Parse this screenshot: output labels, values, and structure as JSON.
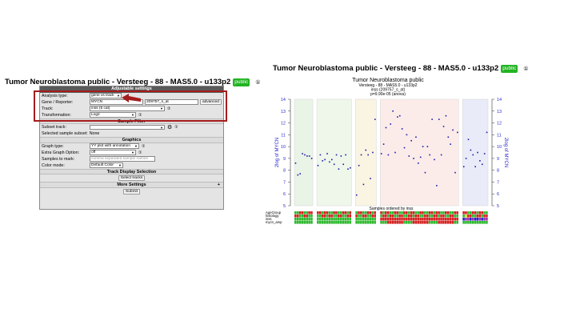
{
  "left": {
    "title": "Tumor Neuroblastoma public - Versteeg - 88 - MAS5.0 - u133p2",
    "badge": "public",
    "info_symbol": "①"
  },
  "right": {
    "title": "Tumor Neuroblastoma public - Versteeg - 88 - MAS5.0 - u133p2",
    "badge": "public",
    "info_symbol": "①"
  },
  "settings": {
    "adjustable_header": "Adjustable settings",
    "analysis_type_label": "Analysis type:",
    "analysis_type_value": "gene vs track",
    "gene_reporter_label": "Gene / Reporter:",
    "gene_value": "MYCN",
    "reporter_value": "209757_s_at",
    "advanced_button": "advanced",
    "track_label": "Track:",
    "track_value": "inss (5 cat)",
    "track_icon": "①",
    "transformation_label": "Transformation:",
    "transformation_value": "Log2",
    "transformation_icon": "①",
    "sample_filter_header": "Sample Filter",
    "subset_track_label": "Subset track:",
    "subset_track_value": "",
    "subset_gear": "⚙",
    "subset_icon": "①",
    "selected_subset_label": "Selected sample subset:",
    "selected_subset_value": "None",
    "graphics_header": "Graphics",
    "graph_type_label": "Graph type:",
    "graph_type_value": "YY plot with annotation",
    "graph_type_icon": "①",
    "extra_option_label": "Extra Graph Option:",
    "extra_option_value": "off",
    "extra_option_icon": "①",
    "samples_mark_label": "Samples to mark:",
    "samples_mark_placeholder": "comma separated sample names",
    "color_mode_label": "Color mode:",
    "color_mode_value": "Default Color",
    "track_display_header": "Track Display Selection",
    "select_tracks_button": "Select tracks",
    "more_settings_header": "More Settings",
    "more_settings_plus": "+",
    "submit_button": "Submit"
  },
  "colors": {
    "accent_red": "#a51c1c",
    "badge_green": "#22b422",
    "point_blue": "#1a1aa8",
    "axis_blue": "#2a2acc"
  },
  "chart_data": {
    "type": "scatter",
    "title": "Tumor Neuroblastoma public",
    "subtitle_lines": [
      "Versteeg - 88 - MAS5.0 - u133p2",
      "inss (209757_s_at)",
      "p=9.90e-05 (anova)"
    ],
    "ylabel_left": "2log of MYCN",
    "ylabel_right": "2log of MYCN",
    "xlabel": "Samples ordered by inss",
    "ylim": [
      5,
      14
    ],
    "yticks": [
      5,
      6,
      7,
      8,
      9,
      10,
      11,
      12,
      13,
      14
    ],
    "groups": [
      {
        "color": "#e9f3e6",
        "values": [
          8.6,
          7.6,
          7.7,
          9.4,
          9.3,
          9.2,
          9.2,
          9.0
        ]
      },
      {
        "color": "#eef7ea",
        "values": [
          8.4,
          9.3,
          8.8,
          8.9,
          9.4,
          8.7,
          8.9,
          8.5,
          9.3,
          8.1,
          9.2,
          8.5,
          9.3,
          8.1,
          8.2
        ]
      },
      {
        "color": "#faf4e2",
        "values": [
          5.9,
          8.4,
          9.3,
          6.8,
          9.7,
          9.3,
          7.3,
          9.5,
          12.3
        ]
      },
      {
        "color": "#fbecea",
        "values": [
          9.4,
          10.2,
          11.6,
          9.3,
          11.9,
          13.0,
          9.5,
          12.5,
          12.6,
          11.5,
          9.9,
          11.0,
          9.2,
          10.5,
          9.0,
          10.8,
          8.6,
          9.1,
          10.0,
          7.8,
          10.0,
          9.3,
          12.3,
          8.9,
          6.7,
          12.3,
          9.3,
          11.7,
          12.6,
          10.8,
          10.2,
          11.4,
          7.8,
          11.2
        ]
      },
      {
        "color": "#e9ecf8",
        "values": [
          8.3,
          9.0,
          10.6,
          9.7,
          9.3,
          8.3,
          9.5,
          8.8,
          8.5,
          9.4,
          11.2
        ]
      }
    ],
    "annotation_tracks": [
      "AgeGroup",
      "histology",
      "inss",
      "mycn_amp"
    ],
    "annotation_palette": {
      "green": "#2eb82e",
      "red": "#d42020",
      "blue": "#2222cc",
      "purple": "#9a2fb0",
      "yellow": "#e0d020"
    }
  }
}
